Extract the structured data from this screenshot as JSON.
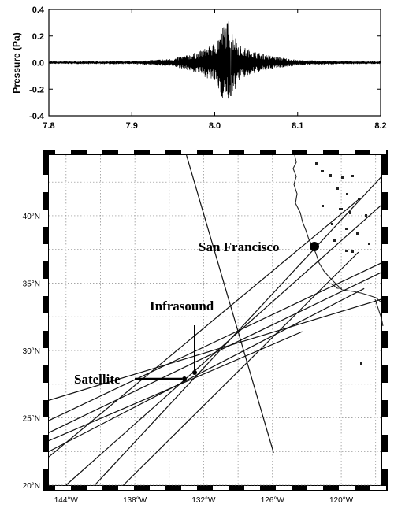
{
  "chart_data": [
    {
      "type": "line",
      "title": "",
      "xlabel": "",
      "ylabel": "Pressure (Pa)",
      "xlim": [
        7.8,
        8.2
      ],
      "ylim": [
        -0.4,
        0.4
      ],
      "x_ticks": [
        "7.8",
        "7.9",
        "8.0",
        "8.1",
        "8.2"
      ],
      "y_ticks": [
        "0.4",
        "0.2",
        "0.0",
        "-0.2",
        "-0.4"
      ],
      "grid": false,
      "series": [
        {
          "x": [
            7.8,
            7.9,
            7.95,
            7.98,
            8.0,
            8.01,
            8.015,
            8.02,
            8.025,
            8.03,
            8.05,
            8.07,
            8.1,
            8.15,
            8.2
          ],
          "y_envelope": [
            0.01,
            0.012,
            0.03,
            0.08,
            0.15,
            0.28,
            0.31,
            0.26,
            0.2,
            0.13,
            0.08,
            0.05,
            0.02,
            0.012,
            0.01
          ],
          "y_max": 0.31,
          "y_min": -0.25
        }
      ]
    },
    {
      "type": "map",
      "x_ticks": [
        "144°W",
        "138°W",
        "132°W",
        "126°W",
        "120°W"
      ],
      "y_ticks": [
        "40°N",
        "35°N",
        "30°N",
        "25°N",
        "20°N"
      ],
      "xlim": [
        -145.5,
        -116.5
      ],
      "ylim": [
        20,
        44.5
      ],
      "grid": true,
      "labels": [
        {
          "text": "San Francisco",
          "lon": -122.4,
          "lat": 37.8
        },
        {
          "text": "Infrasound",
          "lon": -132.4,
          "lat": 28.3
        },
        {
          "text": "Satellite",
          "lon": -133.5,
          "lat": 27.9
        }
      ],
      "tracks": [
        {
          "from": [
            -133.5,
            44.5
          ],
          "to": [
            -125.9,
            22.4
          ]
        },
        {
          "from": [
            -145.5,
            22.1
          ],
          "to": [
            -118.5,
            41.2
          ]
        },
        {
          "from": [
            -145.5,
            24.8
          ],
          "to": [
            -116.5,
            36.5
          ]
        },
        {
          "from": [
            -145.5,
            23.9
          ],
          "to": [
            -116.5,
            35.8
          ]
        },
        {
          "from": [
            -144.0,
            20.0
          ],
          "to": [
            -116.5,
            40.8
          ]
        },
        {
          "from": [
            -141.5,
            20.0
          ],
          "to": [
            -116.5,
            42.9
          ]
        },
        {
          "from": [
            -145.5,
            22.5
          ],
          "to": [
            -118.0,
            34.6
          ]
        },
        {
          "from": [
            -145.5,
            23.3
          ],
          "to": [
            -123.4,
            31.4
          ]
        },
        {
          "from": [
            -145.5,
            26.3
          ],
          "to": [
            -116.5,
            33.8
          ]
        },
        {
          "from": [
            -139.0,
            20.0
          ],
          "to": [
            -118.5,
            37.3
          ]
        }
      ]
    }
  ]
}
